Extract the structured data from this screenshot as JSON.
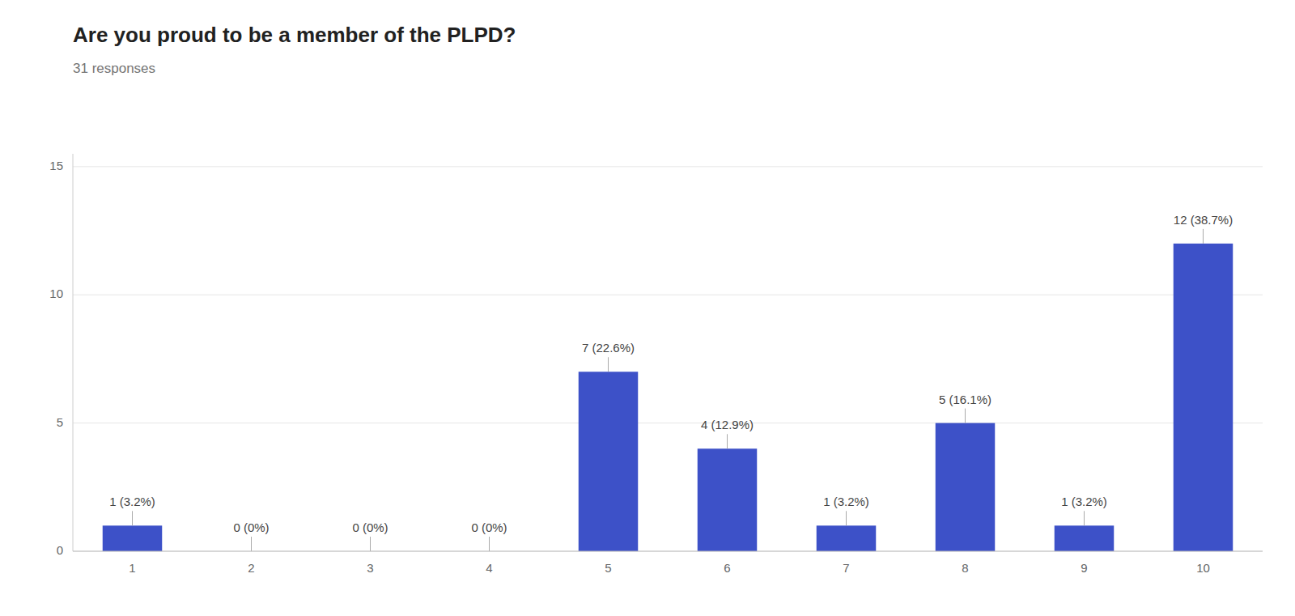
{
  "chart_data": {
    "type": "bar",
    "title": "Are you proud to be a member of the PLPD?",
    "subtitle": "31 responses",
    "categories": [
      "1",
      "2",
      "3",
      "4",
      "5",
      "6",
      "7",
      "8",
      "9",
      "10"
    ],
    "values": [
      1,
      0,
      0,
      0,
      7,
      4,
      1,
      5,
      1,
      12
    ],
    "value_labels": [
      "1 (3.2%)",
      "0 (0%)",
      "0 (0%)",
      "0 (0%)",
      "7 (22.6%)",
      "4 (12.9%)",
      "1 (3.2%)",
      "5 (16.1%)",
      "1 (3.2%)",
      "12 (38.7%)"
    ],
    "data_labels": true,
    "color": "#3d51c8",
    "ylim": [
      0,
      15.5
    ],
    "yticks": [
      0,
      5,
      10,
      15
    ],
    "grid": true
  }
}
